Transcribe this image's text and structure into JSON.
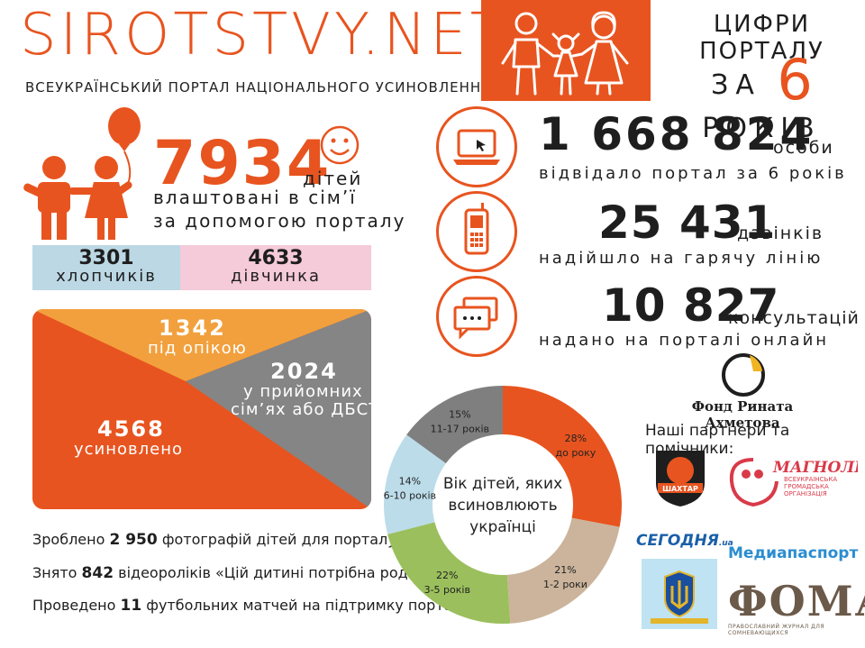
{
  "header": {
    "logo": "SIROTSTVY.NET",
    "subtitle": "ВСЕУКРАЇНСЬКИЙ ПОРТАЛ НАЦІОНАЛЬНОГО УСИНОВЛЕННЯ",
    "portal_title": "ЦИФРИ ПОРТАЛУ",
    "years_prefix": "ЗА",
    "years_number": "6",
    "years_suffix": "РОКІВ"
  },
  "kids": {
    "count": "7934",
    "label": "дітей",
    "line2": "влаштовані в сім’ї",
    "line3": "за допомогою порталу",
    "boys_count": "3301",
    "boys_label": "хлопчиків",
    "girls_count": "4633",
    "girls_label": "дівчинка"
  },
  "care": {
    "custody_count": "1342",
    "custody_label": "під опікою",
    "foster_count": "2024",
    "foster_label_1": "у прийомних",
    "foster_label_2": "сім’ях або ДБСТ",
    "adopted_count": "4568",
    "adopted_label": "усиновлено",
    "colors": {
      "adopted": "#e8541f",
      "custody": "#f2a03d",
      "foster": "#858585"
    }
  },
  "facts": [
    {
      "prefix": "Зроблено",
      "num": "2 950",
      "suffix": "фотографій дітей для порталу"
    },
    {
      "prefix": "Знято",
      "num": "842",
      "suffix": "відеороліків «Цій дитині потрібна родина»"
    },
    {
      "prefix": "Проведено",
      "num": "11",
      "suffix": "футбольних матчей на підтримку порталу"
    }
  ],
  "stats": {
    "visitors_num": "1 668 824",
    "visitors_unit": "особи",
    "visitors_desc": "відвідало портал за 6 років",
    "calls_num": "25 431",
    "calls_unit": "дзвінків",
    "calls_desc": "надійшло на гарячу лінію",
    "consult_num": "10 827",
    "consult_unit": "консультацій",
    "consult_desc": "надано на порталі онлайн"
  },
  "chart_data": {
    "type": "pie",
    "title": "",
    "center_label": [
      "Вік дітей, яких",
      "всиновлюють",
      "українці"
    ],
    "slices": [
      {
        "label": "до року",
        "percent_label": "28%",
        "value": 28,
        "color": "#e8541f"
      },
      {
        "label": "1-2 роки",
        "percent_label": "21%",
        "value": 21,
        "color": "#cbb49b"
      },
      {
        "label": "3-5 років",
        "percent_label": "22%",
        "value": 22,
        "color": "#9bbf5c"
      },
      {
        "label": "6-10 років",
        "percent_label": "14%",
        "value": 14,
        "color": "#bcdcea"
      },
      {
        "label": "11-17 років",
        "percent_label": "15%",
        "value": 15,
        "color": "#7f7f7f"
      }
    ]
  },
  "partners": {
    "fund_name": "Фонд Рината Ахметова",
    "label": "Наші партнери та помічники:",
    "shakhtar": "ШАХТАР",
    "magnolia": "МАГНОЛІЯ",
    "magnolia_sub": "ВСЕУКРАЇНСЬКА ГРОМАДСЬКА ОРГАНІЗАЦІЯ",
    "segodnya": "СЕГОДНЯ",
    "segodnya_suffix": ".ua",
    "mediapassport": "Медиапаспорт",
    "foma": "ФОМА",
    "foma_sub": "ПРАВОСЛАВНИЙ ЖУРНАЛ ДЛЯ СОМНЕВАЮЩИХСЯ"
  },
  "icons": [
    "family-icon",
    "balloon-kids-icon",
    "smiley-icon",
    "laptop-icon",
    "phone-icon",
    "chat-icon",
    "fund-logo-icon",
    "shakhtar-logo-icon",
    "magnolia-logo-icon",
    "ministry-emblem-icon"
  ]
}
